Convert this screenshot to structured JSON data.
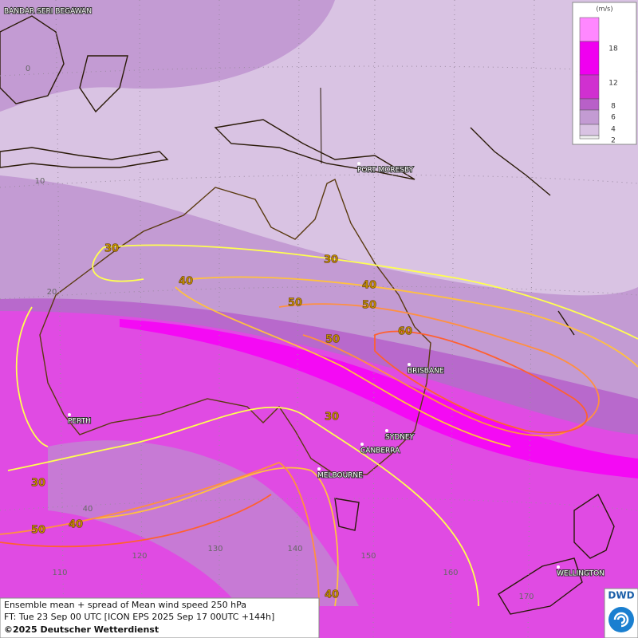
{
  "legend": {
    "unit": "(m/s)",
    "ticks": [
      18,
      12,
      8,
      6,
      4,
      2
    ]
  },
  "places": [
    "BANDAR SERI BEGAWAN",
    "PORT MORESBY",
    "BRISBANE",
    "PERTH",
    "SYDNEY",
    "CANBERRA",
    "MELBOURNE",
    "WELLINGTON"
  ],
  "latitudes": [
    0,
    10,
    20,
    40
  ],
  "longitudes": [
    110,
    120,
    130,
    140,
    150,
    160,
    170
  ],
  "contour_labels": [
    30,
    30,
    40,
    40,
    50,
    50,
    50,
    60,
    30,
    30,
    50,
    40,
    40
  ],
  "footer": {
    "title": "Ensemble mean + spread of Mean wind speed 250 hPa",
    "forecast": "FT: Tue 23 Sep 00 UTC [ICON EPS 2025 Sep 17 00UTC +144h]",
    "copyright": "©2025 Deutscher Wetterdienst"
  },
  "logo": "DWD"
}
